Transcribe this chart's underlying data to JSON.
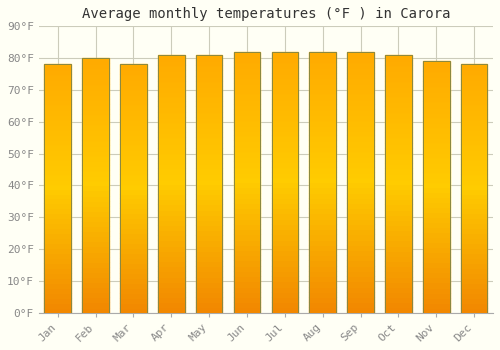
{
  "title": "Average monthly temperatures (°F ) in Carora",
  "months": [
    "Jan",
    "Feb",
    "Mar",
    "Apr",
    "May",
    "Jun",
    "Jul",
    "Aug",
    "Sep",
    "Oct",
    "Nov",
    "Dec"
  ],
  "values": [
    78,
    80,
    78,
    81,
    81,
    82,
    82,
    82,
    82,
    81,
    79,
    78
  ],
  "ylim": [
    0,
    90
  ],
  "yticks": [
    0,
    10,
    20,
    30,
    40,
    50,
    60,
    70,
    80,
    90
  ],
  "ytick_labels": [
    "0°F",
    "10°F",
    "20°F",
    "30°F",
    "40°F",
    "50°F",
    "60°F",
    "70°F",
    "80°F",
    "90°F"
  ],
  "bar_color_center": "#FFCC44",
  "bar_color_edge": "#FFA500",
  "bar_color_bottom": "#FF9900",
  "background_color": "#FFFFF5",
  "grid_color": "#CCCCBB",
  "title_fontsize": 10,
  "tick_fontsize": 8,
  "title_font": "monospace",
  "tick_font": "monospace",
  "bar_edge_color": "#888844",
  "bar_width": 0.7
}
